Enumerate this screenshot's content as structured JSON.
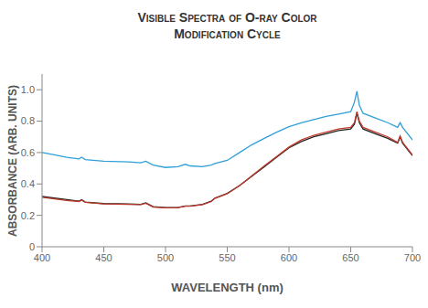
{
  "chart_data": {
    "type": "line",
    "title": "Visible Spectra of O-ray Color Modification Cycle",
    "x_label": "WAVELENGTH (nm)",
    "y_label": "ABSORBANCE (ARB. UNITS)",
    "x": [
      400,
      410,
      420,
      430,
      432,
      435,
      450,
      470,
      480,
      484,
      490,
      500,
      510,
      516,
      520,
      530,
      537,
      540,
      550,
      560,
      570,
      580,
      590,
      600,
      610,
      620,
      630,
      640,
      650,
      653,
      655,
      657,
      660,
      670,
      680,
      688,
      690,
      692,
      700
    ],
    "series": [
      {
        "color": "#2f9fd8",
        "values": [
          0.6,
          0.585,
          0.57,
          0.56,
          0.57,
          0.555,
          0.545,
          0.54,
          0.535,
          0.545,
          0.52,
          0.505,
          0.51,
          0.525,
          0.515,
          0.51,
          0.52,
          0.53,
          0.55,
          0.6,
          0.65,
          0.69,
          0.73,
          0.765,
          0.79,
          0.81,
          0.83,
          0.845,
          0.86,
          0.92,
          0.99,
          0.9,
          0.85,
          0.82,
          0.79,
          0.76,
          0.79,
          0.76,
          0.68
        ]
      },
      {
        "color": "#222222",
        "values": [
          0.32,
          0.31,
          0.3,
          0.29,
          0.3,
          0.285,
          0.275,
          0.272,
          0.27,
          0.28,
          0.255,
          0.25,
          0.25,
          0.26,
          0.26,
          0.27,
          0.29,
          0.31,
          0.34,
          0.39,
          0.45,
          0.51,
          0.57,
          0.63,
          0.67,
          0.7,
          0.72,
          0.74,
          0.75,
          0.78,
          0.85,
          0.79,
          0.75,
          0.72,
          0.69,
          0.66,
          0.7,
          0.66,
          0.58
        ]
      },
      {
        "color": "#c0392b",
        "values": [
          0.315,
          0.305,
          0.295,
          0.288,
          0.297,
          0.283,
          0.273,
          0.27,
          0.268,
          0.277,
          0.253,
          0.248,
          0.249,
          0.258,
          0.258,
          0.268,
          0.288,
          0.308,
          0.338,
          0.39,
          0.452,
          0.515,
          0.575,
          0.635,
          0.68,
          0.71,
          0.73,
          0.75,
          0.76,
          0.79,
          0.86,
          0.8,
          0.76,
          0.73,
          0.7,
          0.665,
          0.705,
          0.665,
          0.585
        ]
      }
    ],
    "xlim": [
      400,
      700
    ],
    "xticks": [
      400,
      450,
      500,
      550,
      600,
      650,
      700
    ],
    "ylim": [
      0,
      1.1
    ],
    "yticks": [
      0,
      0.2,
      0.4,
      0.6,
      0.8,
      {
        "value": 1,
        "label": "1.0"
      }
    ],
    "grid": false
  }
}
